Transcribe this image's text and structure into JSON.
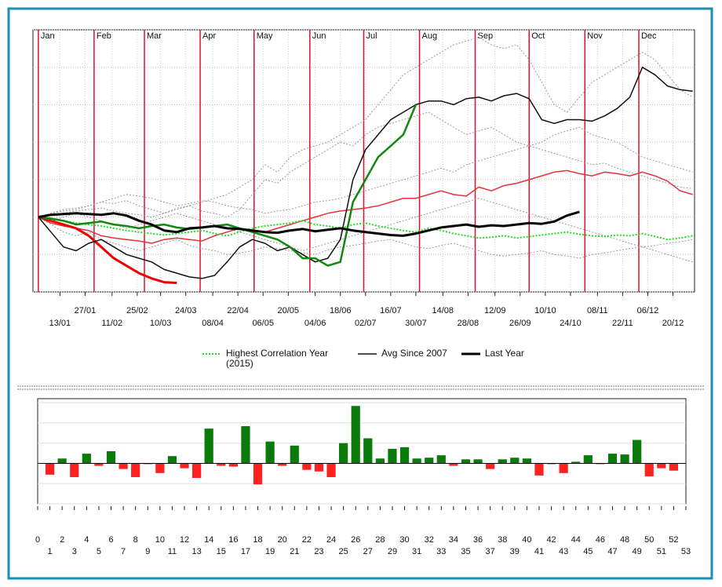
{
  "chart_data": [
    {
      "type": "line",
      "x": [
        0,
        7,
        14,
        21,
        28,
        35,
        42,
        49,
        56,
        63,
        70,
        77,
        84,
        91,
        98,
        105,
        112,
        119,
        126,
        133,
        140,
        147,
        154,
        161,
        168,
        175,
        182,
        189,
        196,
        203,
        210,
        217,
        224,
        231,
        238,
        245,
        252,
        259,
        266,
        273,
        280,
        287,
        294,
        301,
        308,
        315,
        322,
        329,
        336,
        343,
        350,
        357,
        364
      ],
      "xlim": [
        -3,
        365
      ],
      "xticks": [
        {
          "value": 12,
          "label": "13/01"
        },
        {
          "value": 26,
          "label": "27/01"
        },
        {
          "value": 41,
          "label": "11/02"
        },
        {
          "value": 55,
          "label": "25/02"
        },
        {
          "value": 68,
          "label": "10/03"
        },
        {
          "value": 82,
          "label": "24/03"
        },
        {
          "value": 97,
          "label": "08/04"
        },
        {
          "value": 111,
          "label": "22/04"
        },
        {
          "value": 125,
          "label": "06/05"
        },
        {
          "value": 139,
          "label": "20/05"
        },
        {
          "value": 154,
          "label": "04/06"
        },
        {
          "value": 168,
          "label": "18/06"
        },
        {
          "value": 182,
          "label": "02/07"
        },
        {
          "value": 196,
          "label": "16/07"
        },
        {
          "value": 210,
          "label": "30/07"
        },
        {
          "value": 225,
          "label": "14/08"
        },
        {
          "value": 239,
          "label": "28/08"
        },
        {
          "value": 254,
          "label": "12/09"
        },
        {
          "value": 268,
          "label": "26/09"
        },
        {
          "value": 282,
          "label": "10/10"
        },
        {
          "value": 296,
          "label": "24/10"
        },
        {
          "value": 311,
          "label": "08/11"
        },
        {
          "value": 325,
          "label": "22/11"
        },
        {
          "value": 339,
          "label": "06/12"
        },
        {
          "value": 353,
          "label": "20/12"
        }
      ],
      "months": [
        {
          "value": 0,
          "label": "Jan"
        },
        {
          "value": 31,
          "label": "Feb"
        },
        {
          "value": 59,
          "label": "Mar"
        },
        {
          "value": 90,
          "label": "Apr"
        },
        {
          "value": 120,
          "label": "May"
        },
        {
          "value": 151,
          "label": "Jun"
        },
        {
          "value": 181,
          "label": "Jul"
        },
        {
          "value": 212,
          "label": "Aug"
        },
        {
          "value": 243,
          "label": "Sep"
        },
        {
          "value": 273,
          "label": "Oct"
        },
        {
          "value": 304,
          "label": "Nov"
        },
        {
          "value": 334,
          "label": "Dec"
        }
      ],
      "month_color": "#e0102a",
      "ylim": [
        -100,
        250
      ],
      "yticks": [
        -100,
        -50,
        0,
        50,
        100,
        150,
        200,
        250
      ],
      "grid": true,
      "series": [
        {
          "color": "#9a9a9a",
          "style": "dotted",
          "width": 1,
          "values": [
            0,
            5,
            10,
            12,
            15,
            20,
            18,
            22,
            15,
            10,
            5,
            12,
            15,
            20,
            25,
            30,
            40,
            50,
            70,
            60,
            80,
            90,
            95,
            100,
            110,
            120,
            130,
            150,
            170,
            190,
            200,
            210,
            220,
            230,
            235,
            240,
            230,
            225,
            230,
            210,
            180,
            150,
            140,
            160,
            180,
            190,
            200,
            210,
            220,
            210,
            190,
            170,
            160
          ]
        },
        {
          "color": "#9a9a9a",
          "style": "dotted",
          "width": 1,
          "values": [
            0,
            2,
            5,
            8,
            10,
            12,
            8,
            5,
            3,
            0,
            5,
            10,
            15,
            8,
            5,
            0,
            10,
            30,
            50,
            45,
            60,
            70,
            80,
            90,
            100,
            95,
            110,
            120,
            125,
            130,
            135,
            140,
            130,
            120,
            110,
            115,
            120,
            110,
            100,
            95,
            90,
            85,
            80,
            75,
            70,
            72,
            65,
            60,
            55,
            50,
            45,
            40,
            38
          ]
        },
        {
          "color": "#9a9a9a",
          "style": "dotted",
          "width": 1,
          "values": [
            0,
            -10,
            -20,
            -25,
            -20,
            -30,
            -35,
            -40,
            -45,
            -40,
            -35,
            -30,
            -38,
            -42,
            -45,
            -50,
            -48,
            -45,
            -40,
            -42,
            -45,
            -48,
            -50,
            -44,
            -40,
            -38,
            -35,
            -32,
            -30,
            -35,
            -40,
            -42,
            -38,
            -35,
            -40,
            -45,
            -50,
            -52,
            -50,
            -48,
            -45,
            -50,
            -52,
            -55,
            -50,
            -48,
            -45,
            -42,
            -40,
            -38,
            -35,
            -33,
            -30
          ]
        },
        {
          "color": "#9a9a9a",
          "style": "dotted",
          "width": 1,
          "values": [
            0,
            5,
            8,
            10,
            15,
            20,
            25,
            30,
            28,
            25,
            20,
            15,
            18,
            22,
            20,
            15,
            12,
            10,
            5,
            8,
            10,
            15,
            20,
            22,
            25,
            30,
            35,
            40,
            45,
            50,
            55,
            60,
            65,
            60,
            70,
            75,
            80,
            85,
            90,
            95,
            100,
            110,
            115,
            120,
            110,
            105,
            100,
            90,
            80,
            75,
            70,
            65,
            60
          ]
        },
        {
          "color": "#9a9a9a",
          "style": "dotted",
          "width": 1,
          "values": [
            0,
            -5,
            0,
            5,
            0,
            -5,
            -10,
            -15,
            -10,
            -5,
            0,
            5,
            0,
            -5,
            -10,
            -15,
            -20,
            -25,
            -30,
            -35,
            -40,
            -45,
            -40,
            -35,
            -30,
            -25,
            -20,
            -15,
            -10,
            -5,
            0,
            5,
            10,
            15,
            20,
            25,
            20,
            15,
            10,
            5,
            0,
            -5,
            -10,
            -15,
            -20,
            -25,
            -30,
            -35,
            -40,
            -45,
            -50,
            -55,
            -60
          ]
        },
        {
          "color": "#e8303a",
          "style": "solid",
          "width": 1.5,
          "values": [
            0,
            -8,
            -12,
            -15,
            -18,
            -25,
            -28,
            -30,
            -32,
            -35,
            -30,
            -28,
            -30,
            -32,
            -25,
            -20,
            -15,
            -18,
            -20,
            -15,
            -10,
            -5,
            0,
            5,
            8,
            10,
            12,
            15,
            20,
            25,
            25,
            30,
            35,
            30,
            28,
            40,
            35,
            42,
            45,
            50,
            55,
            60,
            62,
            58,
            55,
            60,
            58,
            55,
            60,
            55,
            48,
            35,
            30
          ]
        },
        {
          "color": "#ee0000",
          "style": "solid",
          "width": 3,
          "values": [
            0,
            -5,
            -10,
            -15,
            -25,
            -40,
            -55,
            -65,
            -75,
            -82,
            -87,
            -88,
            null,
            null,
            null,
            null,
            null,
            null,
            null,
            null,
            null,
            null,
            null,
            null,
            null,
            null,
            null,
            null,
            null,
            null,
            null,
            null,
            null,
            null,
            null,
            null,
            null,
            null,
            null,
            null,
            null,
            null,
            null,
            null,
            null,
            null,
            null,
            null,
            null,
            null,
            null,
            null,
            null
          ]
        },
        {
          "name": "Highest Correlation Year (2015)",
          "color": "#22dd22",
          "style": "dotted",
          "width": 2,
          "values": [
            0,
            -3,
            -5,
            -8,
            -10,
            -12,
            -15,
            -18,
            -20,
            -22,
            -24,
            -22,
            -20,
            -18,
            -22,
            -25,
            -20,
            -15,
            -12,
            -10,
            -8,
            -5,
            -10,
            -12,
            -15,
            -10,
            -8,
            -12,
            -15,
            -18,
            -20,
            -15,
            -18,
            -22,
            -25,
            -28,
            -27,
            -25,
            -28,
            -26,
            -24,
            -22,
            -20,
            -23,
            -25,
            -26,
            -24,
            -25,
            -22,
            -26,
            -30,
            -28,
            -25
          ]
        },
        {
          "name": "Avg Since 2007",
          "color": "#111111",
          "style": "solid",
          "width": 1.5,
          "values": [
            0,
            -20,
            -40,
            -45,
            -35,
            -30,
            -40,
            -50,
            -55,
            -60,
            -70,
            -75,
            -80,
            -82,
            -78,
            -60,
            -40,
            -30,
            -35,
            -45,
            -40,
            -50,
            -60,
            -55,
            -30,
            50,
            90,
            110,
            130,
            140,
            150,
            155,
            155,
            150,
            158,
            160,
            155,
            162,
            165,
            158,
            130,
            125,
            130,
            130,
            128,
            135,
            145,
            160,
            200,
            190,
            175,
            170,
            168
          ]
        },
        {
          "color": "#118811",
          "style": "solid",
          "width": 2.5,
          "values": [
            0,
            -2,
            -5,
            -10,
            -8,
            -6,
            -10,
            -12,
            -15,
            -12,
            -10,
            -14,
            -16,
            -14,
            -12,
            -10,
            -15,
            -20,
            -25,
            -30,
            -40,
            -55,
            -55,
            -65,
            -60,
            20,
            50,
            80,
            95,
            110,
            150,
            null,
            null,
            null,
            null,
            null,
            null,
            null,
            null,
            null,
            null,
            null,
            null,
            null,
            null,
            null,
            null,
            null,
            null,
            null,
            null,
            null,
            null
          ]
        },
        {
          "name": "Last Year",
          "color": "#000000",
          "style": "solid",
          "width": 3,
          "values": [
            0,
            3,
            4,
            5,
            4,
            3,
            5,
            2,
            -5,
            -10,
            -18,
            -20,
            -15,
            -14,
            -12,
            -15,
            -16,
            -18,
            -20,
            -21,
            -18,
            -16,
            -19,
            -17,
            -15,
            -18,
            -20,
            -22,
            -24,
            -25,
            -22,
            -18,
            -14,
            -12,
            -10,
            -13,
            -11,
            -12,
            -10,
            -8,
            -9,
            -6,
            2,
            7,
            null,
            null,
            null,
            null,
            null,
            null,
            null,
            null,
            null
          ]
        }
      ]
    },
    {
      "type": "bar",
      "x": [
        1,
        2,
        3,
        4,
        5,
        6,
        7,
        8,
        9,
        10,
        11,
        12,
        13,
        14,
        15,
        16,
        17,
        18,
        19,
        20,
        21,
        22,
        23,
        24,
        25,
        26,
        27,
        28,
        29,
        30,
        31,
        32,
        33,
        34,
        35,
        36,
        37,
        38,
        39,
        40,
        41,
        42,
        43,
        44,
        45,
        46,
        47,
        48,
        49,
        50,
        51,
        52
      ],
      "values": [
        -14,
        6,
        -17,
        12,
        -3,
        15,
        -7,
        -17,
        -1,
        -12,
        9,
        -6,
        -18,
        43,
        -3,
        -4,
        46,
        -26,
        27,
        -3,
        22,
        -8,
        -10,
        -17,
        25,
        71,
        31,
        6,
        18,
        20,
        6,
        7,
        10,
        -3,
        5,
        5,
        -7,
        5,
        7,
        6,
        -15,
        -1,
        -12,
        2,
        10,
        -1,
        12,
        11,
        29,
        -16,
        -6,
        -9
      ],
      "colors": {
        "positive": "#0a7a0a",
        "negative": "#ff2020"
      },
      "xlim": [
        0,
        53
      ],
      "xticks": [
        0,
        1,
        2,
        3,
        4,
        5,
        6,
        7,
        8,
        9,
        10,
        11,
        12,
        13,
        14,
        15,
        16,
        17,
        18,
        19,
        20,
        21,
        22,
        23,
        24,
        25,
        26,
        27,
        28,
        29,
        30,
        31,
        32,
        33,
        34,
        35,
        36,
        37,
        38,
        39,
        40,
        41,
        42,
        43,
        44,
        45,
        46,
        47,
        48,
        49,
        50,
        51,
        52,
        53
      ],
      "ylim": [
        -50,
        80
      ],
      "yticks": [
        -50,
        -25,
        0,
        25,
        50,
        75
      ],
      "grid": true
    }
  ]
}
